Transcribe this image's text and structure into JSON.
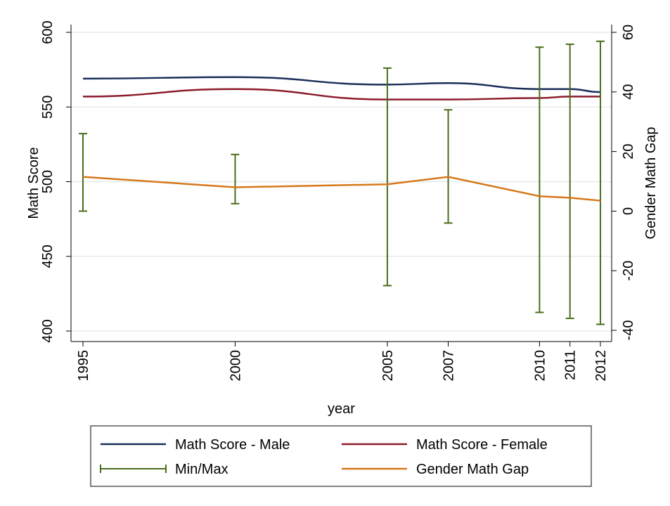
{
  "chart_data": {
    "type": "line",
    "x": [
      1995,
      2000,
      2005,
      2007,
      2010,
      2011,
      2012
    ],
    "xlabel": "year",
    "ylabel": "Math Score",
    "y2label": "Gender Math Gap",
    "ylim": [
      400,
      600
    ],
    "y2lim": [
      -40,
      60
    ],
    "yticks": [
      400,
      450,
      500,
      550,
      600
    ],
    "y2ticks": [
      -40,
      -20,
      0,
      20,
      40,
      60
    ],
    "grid": true,
    "legend_position": "bottom",
    "series": [
      {
        "name": "Math Score - Male",
        "axis": "left",
        "color": "#1a2e5a",
        "values": [
          569,
          570,
          565,
          566,
          562,
          562,
          560
        ]
      },
      {
        "name": "Math Score - Female",
        "axis": "left",
        "color": "#8b1a2b",
        "values": [
          557,
          562,
          555,
          555,
          556,
          557,
          557
        ]
      },
      {
        "name": "Min/Max",
        "axis": "right",
        "type": "errorbar",
        "color": "#4a6d1a",
        "low": [
          0,
          2.5,
          -25,
          -4,
          -34,
          -36,
          -38
        ],
        "high": [
          26,
          19,
          48,
          34,
          55,
          56,
          57
        ]
      },
      {
        "name": "Gender Math Gap",
        "axis": "right",
        "color": "#d6781a",
        "values": [
          11.5,
          8,
          9,
          11.5,
          5,
          4.5,
          3.5
        ]
      }
    ]
  }
}
